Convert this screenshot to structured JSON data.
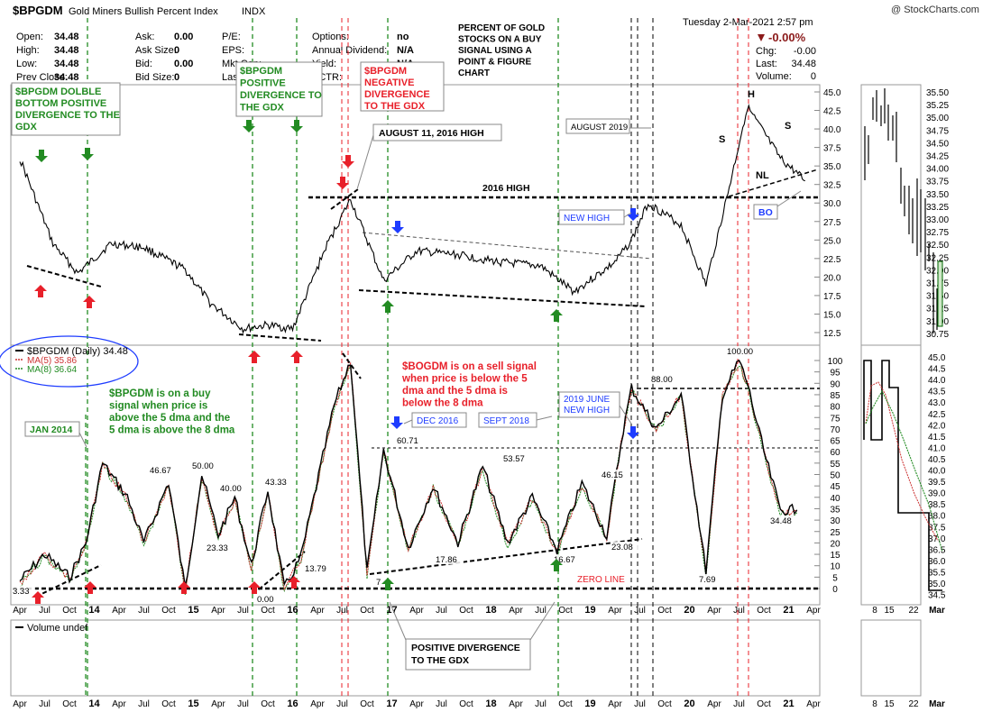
{
  "header": {
    "symbol": "$BPGDM",
    "name": "Gold Miners Bullish Percent Index",
    "exchange": "INDX",
    "watermark": "@ StockCharts.com",
    "date_time": "Tuesday  2-Mar-2021  2:57 pm",
    "change_pct": "-0.00%",
    "quote": [
      [
        "Open:",
        "34.48",
        "Ask:",
        "0.00",
        "P/E:",
        "",
        "Options:",
        "no"
      ],
      [
        "High:",
        "34.48",
        "Ask Size:",
        "0",
        "EPS:",
        "",
        "Annual Dividend:",
        "N/A"
      ],
      [
        "Low:",
        "34.48",
        "Bid:",
        "0.00",
        "Mkt Cap:",
        "",
        "Yield:",
        "N/A"
      ],
      [
        "Prev Close:",
        "34.48",
        "Bid Size:",
        "0",
        "Last Trade:",
        "",
        "SCTR:",
        ""
      ]
    ],
    "right_quote": [
      [
        "Chg:",
        "-0.00"
      ],
      [
        "Last:",
        "34.48"
      ],
      [
        "Volume:",
        "0"
      ]
    ]
  },
  "colors": {
    "up": "#cc0000",
    "down": "#006600",
    "signal_up": "#228b22",
    "signal_down": "#e8202a",
    "accent_blue": "#1e3cff",
    "ma5": "#cc3333",
    "ma8": "#228b22"
  },
  "annotations": {
    "title_box": "PERCENT OF GOLD\nSTOCKS ON A BUY\nSIGNAL USING A\nPOINT & FIGURE\nCHART",
    "double_bottom": "$BPGDM DOLBLE\nBOTTOM POSITIVE\nDIVERGENCE TO THE\nGDX",
    "positive_div": "$BPGDM\nPOSITIVE\nDIVERGENCE TO\nTHE GDX",
    "negative_div": "$BPGDM\nNEGATIVE\nDIVERGENCE\nTO THE GDX",
    "aug_high": "AUGUST 11, 2016 HIGH",
    "aug_2019": "AUGUST 2019",
    "high_2016": "2016 HIGH",
    "new_high": "NEW HIGH",
    "bo": "BO",
    "h": "H",
    "s_left": "S",
    "s_right": "S",
    "nl": "NL",
    "buy_signal": "$BPGDM is on a buy\nsignal when price is\nabove the 5 dma and the\n5 dma is above the 8 dma",
    "sell_signal": "$BOGDM is on a sell signal\nwhen price is below the 5\ndma and the 5 dma is\nbelow the 8 dma",
    "jan_2014": "JAN 2014",
    "dec_2016": "DEC 2016",
    "sept_2018": "SEPT 2018",
    "june_2019": "2019 JUNE\nNEW HIGH",
    "zero_line": "ZERO LINE",
    "pos_div_bottom": "POSITIVE DIVERGENCE\nTO THE GDX",
    "legend_main": "$BPGDM (Daily) 34.48",
    "legend_ma5": "MA(5) 35.86",
    "legend_ma8": "MA(8) 36.64",
    "volume_label": "Volume undef"
  },
  "chart_data": [
    {
      "type": "line",
      "title": "Gold Miners Bullish Percent Index (upper panel)",
      "series": [
        {
          "name": "$BPGDM",
          "x": [
            "2013-04",
            "2013-08",
            "2013-11",
            "2014-03",
            "2014-07",
            "2014-12",
            "2015-03",
            "2015-07",
            "2015-10",
            "2016-01",
            "2016-05",
            "2016-08",
            "2016-12",
            "2017-04",
            "2017-09",
            "2018-02",
            "2018-07",
            "2018-11",
            "2019-04",
            "2019-06",
            "2019-08",
            "2019-12",
            "2020-03",
            "2020-06",
            "2020-08",
            "2020-12",
            "2021-03"
          ],
          "values": [
            36.0,
            24.5,
            20.5,
            24.5,
            24.0,
            21.0,
            16.5,
            13.0,
            13.5,
            13.0,
            24.0,
            30.5,
            19.5,
            23.5,
            23.0,
            22.0,
            21.5,
            18.0,
            22.0,
            25.0,
            30.0,
            27.0,
            19.0,
            33.0,
            43.0,
            36.0,
            33.0
          ]
        }
      ],
      "ylim": [
        12.5,
        45.0
      ],
      "yticks": [
        "45.0",
        "42.5",
        "40.0",
        "37.5",
        "35.0",
        "32.5",
        "30.0",
        "27.5",
        "25.0",
        "22.5",
        "20.0",
        "17.5",
        "15.0",
        "12.5"
      ],
      "xticks": [
        "Apr",
        "Jul",
        "Oct",
        "14",
        "Apr",
        "Jul",
        "Oct",
        "15",
        "Apr",
        "Jul",
        "Oct",
        "16",
        "Apr",
        "Jul",
        "Oct",
        "17",
        "Apr",
        "Jul",
        "Oct",
        "18",
        "Apr",
        "Jul",
        "Oct",
        "19",
        "Apr",
        "Jul",
        "Oct",
        "20",
        "Apr",
        "Jul",
        "Oct",
        "21",
        "Apr"
      ],
      "reference_lines": {
        "2016 HIGH": 31.0
      }
    },
    {
      "type": "line",
      "title": "$BPGDM daily with MA(5) and MA(8) (lower panel)",
      "series": [
        {
          "name": "$BPGDM",
          "x": [
            "2013-04",
            "2013-07",
            "2013-10",
            "2013-12",
            "2014-02",
            "2014-05",
            "2014-07",
            "2014-10",
            "2014-12",
            "2015-02",
            "2015-04",
            "2015-06",
            "2015-08",
            "2015-10",
            "2015-12",
            "2016-02",
            "2016-06",
            "2016-08",
            "2016-10",
            "2016-12",
            "2017-03",
            "2017-06",
            "2017-09",
            "2017-12",
            "2018-03",
            "2018-06",
            "2018-09",
            "2018-12",
            "2019-03",
            "2019-05",
            "2019-06",
            "2019-09",
            "2019-12",
            "2020-03",
            "2020-05",
            "2020-07",
            "2020-08",
            "2020-10",
            "2020-12",
            "2021-02"
          ],
          "values": [
            3.33,
            15,
            5,
            20,
            55,
            40,
            20,
            46.67,
            0,
            50,
            23.33,
            40,
            10,
            43.33,
            0,
            13.79,
            80,
            100,
            7.14,
            60.71,
            17.86,
            45,
            20,
            53.57,
            20,
            40,
            16.67,
            46.15,
            23.08,
            70,
            88.0,
            70,
            85,
            7.69,
            85,
            100.0,
            90,
            60,
            34.48,
            34.48
          ]
        }
      ],
      "labels": [
        "3.33",
        "46.67",
        "50.00",
        "40.00",
        "23.33",
        "43.33",
        "13.79",
        "0.00",
        "7",
        "60.71",
        "17.86",
        "53.57",
        "46.15",
        "16.67",
        "23.08",
        "88.00",
        "7.69",
        "100.00",
        "34.48"
      ],
      "ylim": [
        0,
        100
      ],
      "yticks": [
        "100",
        "95",
        "90",
        "85",
        "80",
        "75",
        "70",
        "65",
        "60",
        "55",
        "50",
        "45",
        "40",
        "35",
        "30",
        "25",
        "20",
        "15",
        "10",
        "5",
        "0"
      ]
    },
    {
      "type": "line",
      "title": "Recent daily P&F columns (right panels)",
      "yticks_upper": [
        "35.50",
        "35.25",
        "35.00",
        "34.75",
        "34.50",
        "34.25",
        "34.00",
        "33.75",
        "33.50",
        "33.25",
        "33.00",
        "32.75",
        "32.50",
        "32.25",
        "32.00",
        "31.75",
        "31.50",
        "31.25",
        "31.00",
        "30.75"
      ],
      "yticks_lower": [
        "45.0",
        "44.5",
        "44.0",
        "43.5",
        "43.0",
        "42.5",
        "42.0",
        "41.5",
        "41.0",
        "40.5",
        "40.0",
        "39.5",
        "39.0",
        "38.5",
        "38.0",
        "37.5",
        "37.0",
        "36.5",
        "36.0",
        "35.5",
        "35.0",
        "34.5"
      ],
      "xticks": [
        "8",
        "15",
        "22",
        "Mar"
      ]
    }
  ]
}
